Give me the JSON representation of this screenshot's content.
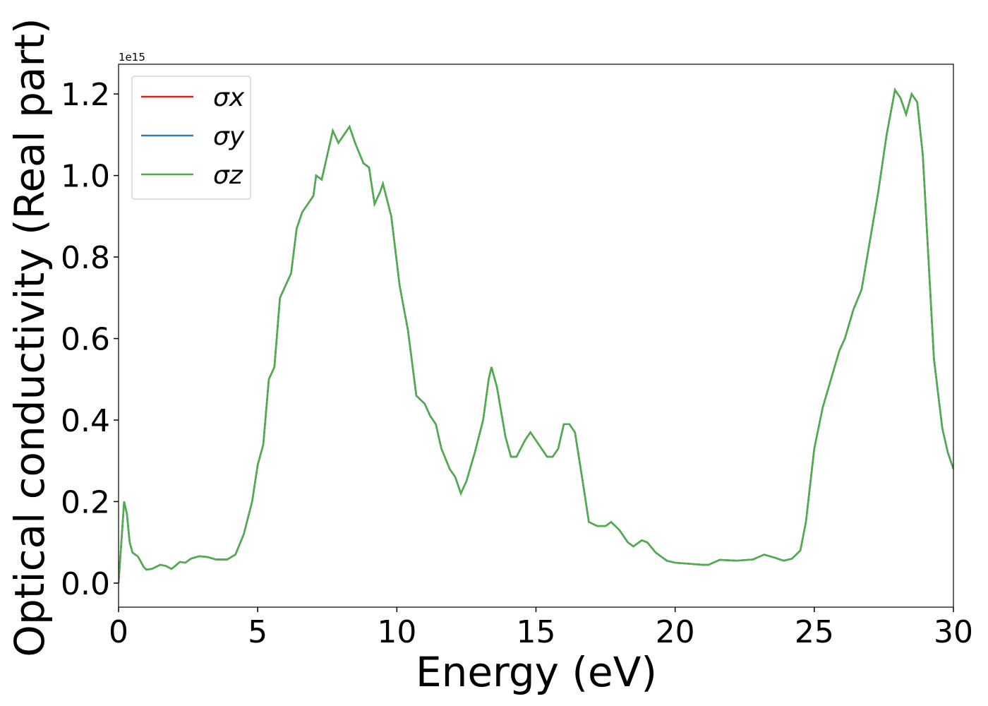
{
  "chart_data": {
    "type": "line",
    "xlabel": "Energy (eV)",
    "ylabel": "Optical conductivity (Real part)",
    "y_offset_label": "1e15",
    "xlim": [
      0,
      30
    ],
    "xticks": [
      0,
      5,
      10,
      15,
      20,
      25,
      30
    ],
    "ylim": [
      -0.059,
      1.273
    ],
    "yticks": [
      {
        "value": 0,
        "label": "0.0"
      },
      0.2,
      0.4,
      0.6,
      0.8,
      {
        "value": 1,
        "label": "1.0"
      },
      1.2
    ],
    "legend": "upper left",
    "x": [
      0,
      0.1,
      0.2,
      0.3,
      0.4,
      0.5,
      0.7,
      0.9,
      1.0,
      1.2,
      1.5,
      1.7,
      1.9,
      2.0,
      2.2,
      2.4,
      2.6,
      2.9,
      3.2,
      3.5,
      3.9,
      4.2,
      4.5,
      4.8,
      5.0,
      5.2,
      5.4,
      5.6,
      5.8,
      6.0,
      6.2,
      6.4,
      6.6,
      6.8,
      7.0,
      7.1,
      7.3,
      7.5,
      7.7,
      7.9,
      8.1,
      8.3,
      8.5,
      8.8,
      9.0,
      9.2,
      9.4,
      9.5,
      9.8,
      10.1,
      10.4,
      10.7,
      11.0,
      11.2,
      11.4,
      11.6,
      11.9,
      12.1,
      12.3,
      12.5,
      12.8,
      13.1,
      13.3,
      13.4,
      13.6,
      13.9,
      14.1,
      14.3,
      14.6,
      14.8,
      15.0,
      15.2,
      15.4,
      15.6,
      15.8,
      16.0,
      16.2,
      16.4,
      16.7,
      16.9,
      17.2,
      17.5,
      17.7,
      18.0,
      18.3,
      18.5,
      18.8,
      19.0,
      19.3,
      19.7,
      20.0,
      21.0,
      21.2,
      21.6,
      22.2,
      22.8,
      23.2,
      23.6,
      23.9,
      24.2,
      24.5,
      24.7,
      25.0,
      25.3,
      25.6,
      25.9,
      26.1,
      26.4,
      26.7,
      27.0,
      27.3,
      27.6,
      27.9,
      28.1,
      28.3,
      28.5,
      28.7,
      28.9,
      29.1,
      29.3,
      29.6,
      29.8,
      30.0
    ],
    "series": [
      {
        "name": "σx",
        "color": "#e41a1c",
        "values": [
          0,
          0.1,
          0.2,
          0.17,
          0.1,
          0.075,
          0.065,
          0.04,
          0.033,
          0.035,
          0.045,
          0.042,
          0.035,
          0.04,
          0.052,
          0.05,
          0.06,
          0.066,
          0.064,
          0.058,
          0.058,
          0.07,
          0.12,
          0.2,
          0.29,
          0.34,
          0.5,
          0.53,
          0.7,
          0.73,
          0.76,
          0.87,
          0.91,
          0.93,
          0.95,
          1.0,
          0.99,
          1.05,
          1.11,
          1.08,
          1.1,
          1.12,
          1.08,
          1.03,
          1.02,
          0.93,
          0.96,
          0.98,
          0.9,
          0.73,
          0.62,
          0.46,
          0.44,
          0.41,
          0.39,
          0.33,
          0.28,
          0.26,
          0.22,
          0.25,
          0.32,
          0.4,
          0.5,
          0.53,
          0.48,
          0.36,
          0.31,
          0.31,
          0.35,
          0.37,
          0.35,
          0.33,
          0.31,
          0.31,
          0.33,
          0.39,
          0.39,
          0.37,
          0.24,
          0.15,
          0.14,
          0.14,
          0.15,
          0.13,
          0.1,
          0.09,
          0.105,
          0.1,
          0.075,
          0.055,
          0.05,
          0.045,
          0.045,
          0.057,
          0.055,
          0.058,
          0.07,
          0.062,
          0.055,
          0.06,
          0.08,
          0.15,
          0.33,
          0.43,
          0.5,
          0.57,
          0.6,
          0.67,
          0.72,
          0.84,
          0.96,
          1.1,
          1.21,
          1.19,
          1.15,
          1.2,
          1.18,
          1.05,
          0.8,
          0.55,
          0.38,
          0.32,
          0.28
        ]
      },
      {
        "name": "σy",
        "color": "#377eb8",
        "values": [
          0,
          0.1,
          0.2,
          0.17,
          0.1,
          0.075,
          0.065,
          0.04,
          0.033,
          0.035,
          0.045,
          0.042,
          0.035,
          0.04,
          0.052,
          0.05,
          0.06,
          0.066,
          0.064,
          0.058,
          0.058,
          0.07,
          0.12,
          0.2,
          0.29,
          0.34,
          0.5,
          0.53,
          0.7,
          0.73,
          0.76,
          0.87,
          0.91,
          0.93,
          0.95,
          1.0,
          0.99,
          1.05,
          1.11,
          1.08,
          1.1,
          1.12,
          1.08,
          1.03,
          1.02,
          0.93,
          0.96,
          0.98,
          0.9,
          0.73,
          0.62,
          0.46,
          0.44,
          0.41,
          0.39,
          0.33,
          0.28,
          0.26,
          0.22,
          0.25,
          0.32,
          0.4,
          0.5,
          0.53,
          0.48,
          0.36,
          0.31,
          0.31,
          0.35,
          0.37,
          0.35,
          0.33,
          0.31,
          0.31,
          0.33,
          0.39,
          0.39,
          0.37,
          0.24,
          0.15,
          0.14,
          0.14,
          0.15,
          0.13,
          0.1,
          0.09,
          0.105,
          0.1,
          0.075,
          0.055,
          0.05,
          0.045,
          0.045,
          0.057,
          0.055,
          0.058,
          0.07,
          0.062,
          0.055,
          0.06,
          0.08,
          0.15,
          0.33,
          0.43,
          0.5,
          0.57,
          0.6,
          0.67,
          0.72,
          0.84,
          0.96,
          1.1,
          1.21,
          1.19,
          1.15,
          1.2,
          1.18,
          1.05,
          0.8,
          0.55,
          0.38,
          0.32,
          0.28
        ]
      },
      {
        "name": "σz",
        "color": "#4daf4a",
        "values": [
          0,
          0.1,
          0.2,
          0.17,
          0.1,
          0.075,
          0.065,
          0.04,
          0.033,
          0.035,
          0.045,
          0.042,
          0.035,
          0.04,
          0.052,
          0.05,
          0.06,
          0.066,
          0.064,
          0.058,
          0.058,
          0.07,
          0.12,
          0.2,
          0.29,
          0.34,
          0.5,
          0.53,
          0.7,
          0.73,
          0.76,
          0.87,
          0.91,
          0.93,
          0.95,
          1.0,
          0.99,
          1.05,
          1.11,
          1.08,
          1.1,
          1.12,
          1.08,
          1.03,
          1.02,
          0.93,
          0.96,
          0.98,
          0.9,
          0.73,
          0.62,
          0.46,
          0.44,
          0.41,
          0.39,
          0.33,
          0.28,
          0.26,
          0.22,
          0.25,
          0.32,
          0.4,
          0.5,
          0.53,
          0.48,
          0.36,
          0.31,
          0.31,
          0.35,
          0.37,
          0.35,
          0.33,
          0.31,
          0.31,
          0.33,
          0.39,
          0.39,
          0.37,
          0.24,
          0.15,
          0.14,
          0.14,
          0.15,
          0.13,
          0.1,
          0.09,
          0.105,
          0.1,
          0.075,
          0.055,
          0.05,
          0.045,
          0.045,
          0.057,
          0.055,
          0.058,
          0.07,
          0.062,
          0.055,
          0.06,
          0.08,
          0.15,
          0.33,
          0.43,
          0.5,
          0.57,
          0.6,
          0.67,
          0.72,
          0.84,
          0.96,
          1.1,
          1.21,
          1.19,
          1.15,
          1.2,
          1.18,
          1.05,
          0.8,
          0.55,
          0.38,
          0.32,
          0.28
        ]
      }
    ]
  }
}
